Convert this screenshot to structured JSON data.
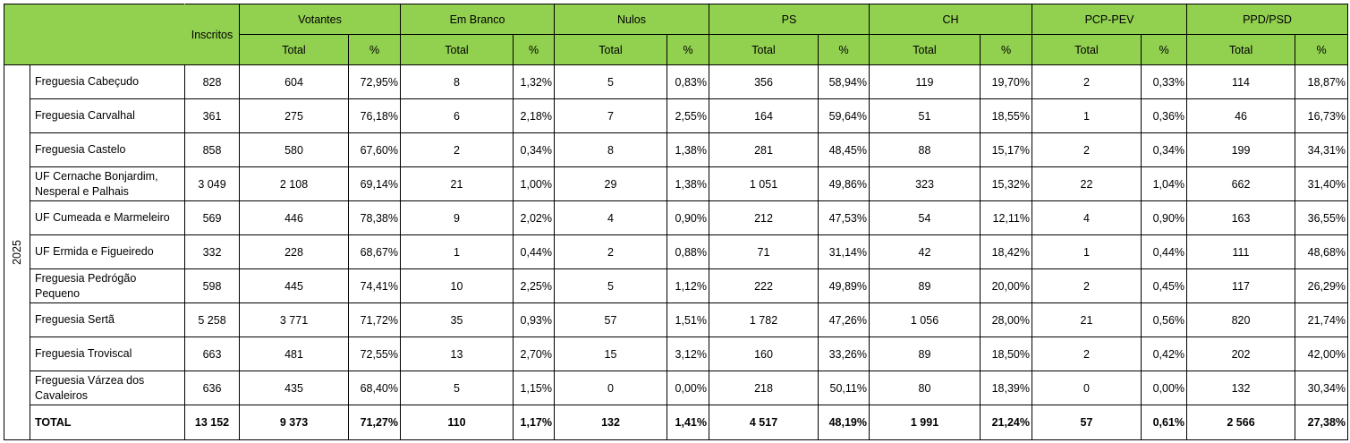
{
  "header": {
    "inscritos": "Inscritos",
    "groups": [
      "Votantes",
      "Em Branco",
      "Nulos",
      "PS",
      "CH",
      "PCP-PEV",
      "PPD/PSD"
    ],
    "total_label": "Total",
    "pct_label": "%"
  },
  "year": "2025",
  "colors": {
    "header_bg": "#92d050"
  },
  "rows": [
    {
      "name": "Freguesia Cabeçudo",
      "values": [
        "828",
        "604",
        "72,95%",
        "8",
        "1,32%",
        "5",
        "0,83%",
        "356",
        "58,94%",
        "119",
        "19,70%",
        "2",
        "0,33%",
        "114",
        "18,87%"
      ]
    },
    {
      "name": "Freguesia Carvalhal",
      "values": [
        "361",
        "275",
        "76,18%",
        "6",
        "2,18%",
        "7",
        "2,55%",
        "164",
        "59,64%",
        "51",
        "18,55%",
        "1",
        "0,36%",
        "46",
        "16,73%"
      ]
    },
    {
      "name": "Freguesia Castelo",
      "values": [
        "858",
        "580",
        "67,60%",
        "2",
        "0,34%",
        "8",
        "1,38%",
        "281",
        "48,45%",
        "88",
        "15,17%",
        "2",
        "0,34%",
        "199",
        "34,31%"
      ]
    },
    {
      "name": "UF Cernache Bonjardim, Nesperal e Palhais",
      "values": [
        "3 049",
        "2 108",
        "69,14%",
        "21",
        "1,00%",
        "29",
        "1,38%",
        "1 051",
        "49,86%",
        "323",
        "15,32%",
        "22",
        "1,04%",
        "662",
        "31,40%"
      ]
    },
    {
      "name": "UF Cumeada e Marmeleiro",
      "values": [
        "569",
        "446",
        "78,38%",
        "9",
        "2,02%",
        "4",
        "0,90%",
        "212",
        "47,53%",
        "54",
        "12,11%",
        "4",
        "0,90%",
        "163",
        "36,55%"
      ]
    },
    {
      "name": "UF Ermida e Figueiredo",
      "values": [
        "332",
        "228",
        "68,67%",
        "1",
        "0,44%",
        "2",
        "0,88%",
        "71",
        "31,14%",
        "42",
        "18,42%",
        "1",
        "0,44%",
        "111",
        "48,68%"
      ]
    },
    {
      "name": "Freguesia Pedrógão Pequeno",
      "values": [
        "598",
        "445",
        "74,41%",
        "10",
        "2,25%",
        "5",
        "1,12%",
        "222",
        "49,89%",
        "89",
        "20,00%",
        "2",
        "0,45%",
        "117",
        "26,29%"
      ]
    },
    {
      "name": "Freguesia Sertã",
      "values": [
        "5 258",
        "3 771",
        "71,72%",
        "35",
        "0,93%",
        "57",
        "1,51%",
        "1 782",
        "47,26%",
        "1 056",
        "28,00%",
        "21",
        "0,56%",
        "820",
        "21,74%"
      ]
    },
    {
      "name": "Freguesia Troviscal",
      "values": [
        "663",
        "481",
        "72,55%",
        "13",
        "2,70%",
        "15",
        "3,12%",
        "160",
        "33,26%",
        "89",
        "18,50%",
        "2",
        "0,42%",
        "202",
        "42,00%"
      ]
    },
    {
      "name": "Freguesia Várzea dos Cavaleiros",
      "values": [
        "636",
        "435",
        "68,40%",
        "5",
        "1,15%",
        "0",
        "0,00%",
        "218",
        "50,11%",
        "80",
        "18,39%",
        "0",
        "0,00%",
        "132",
        "30,34%"
      ]
    }
  ],
  "total": {
    "name": "TOTAL",
    "values": [
      "13 152",
      "9 373",
      "71,27%",
      "110",
      "1,17%",
      "132",
      "1,41%",
      "4 517",
      "48,19%",
      "1 991",
      "21,24%",
      "57",
      "0,61%",
      "2 566",
      "27,38%"
    ]
  }
}
